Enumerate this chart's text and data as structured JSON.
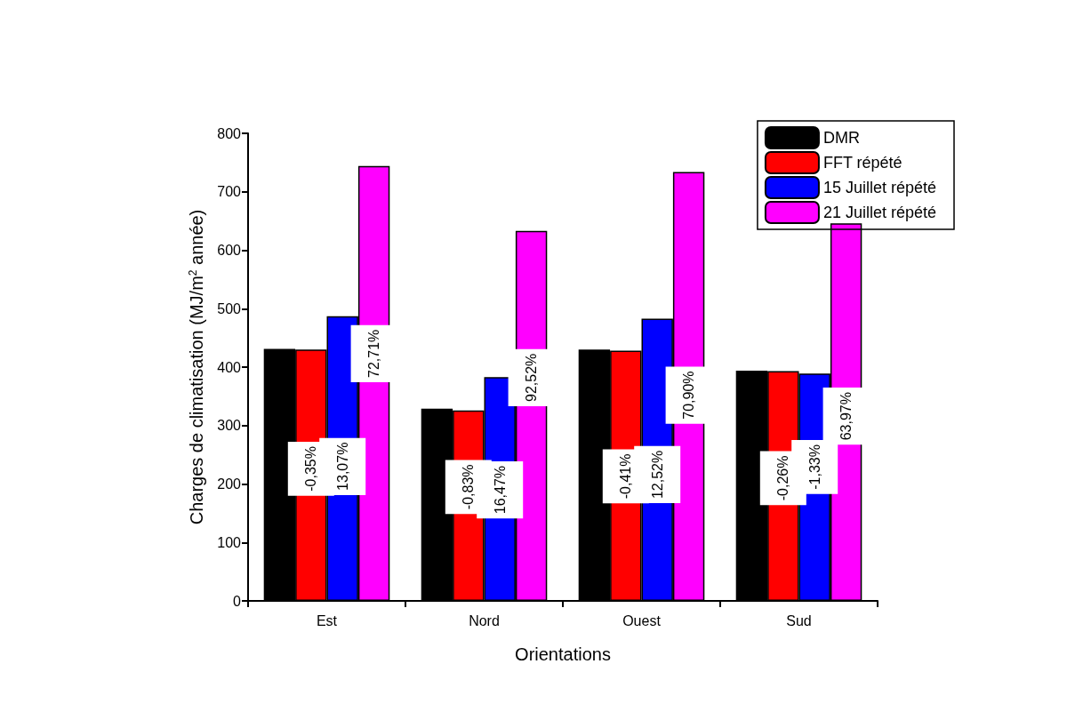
{
  "chart_data": {
    "type": "bar",
    "xlabel": "Orientations",
    "ylabel": "Charges de climatisation (MJ/m$^{2}$ année)",
    "categories": [
      "Est",
      "Nord",
      "Ouest",
      "Sud"
    ],
    "series": [
      {
        "name": "DMR",
        "color": "#000000",
        "values": [
          431,
          329,
          430,
          394
        ]
      },
      {
        "name": "FFT répété",
        "color": "#ff0000",
        "values": [
          430,
          326,
          428,
          393
        ]
      },
      {
        "name": "15 Juillet répété",
        "color": "#0000ff",
        "values": [
          487,
          383,
          483,
          389
        ]
      },
      {
        "name": "21 Juillet répété",
        "color": "#ff00ff",
        "values": [
          744,
          633,
          734,
          646
        ]
      }
    ],
    "annotations": [
      {
        "text": "-0,35%",
        "x": "Est",
        "y": 226
      },
      {
        "text": "13,07%",
        "x": "Est",
        "y": 230
      },
      {
        "text": "72,71%",
        "x": "Est",
        "y": 423
      },
      {
        "text": "-0,83%",
        "x": "Nord",
        "y": 195
      },
      {
        "text": "16,47%",
        "x": "Nord",
        "y": 190
      },
      {
        "text": "92,52%",
        "x": "Nord",
        "y": 382
      },
      {
        "text": "-0,41%",
        "x": "Ouest",
        "y": 213
      },
      {
        "text": "12,52%",
        "x": "Ouest",
        "y": 216
      },
      {
        "text": "70,90%",
        "x": "Ouest",
        "y": 352
      },
      {
        "text": "-0,26%",
        "x": "Sud",
        "y": 210
      },
      {
        "text": "-1,33%",
        "x": "Sud",
        "y": 229
      },
      {
        "text": "63,97%",
        "x": "Sud",
        "y": 316
      }
    ],
    "ylim": [
      0,
      800
    ],
    "yticks": [
      0,
      100,
      200,
      300,
      400,
      500,
      600,
      700,
      800
    ],
    "grid": false,
    "legend": "top right"
  }
}
